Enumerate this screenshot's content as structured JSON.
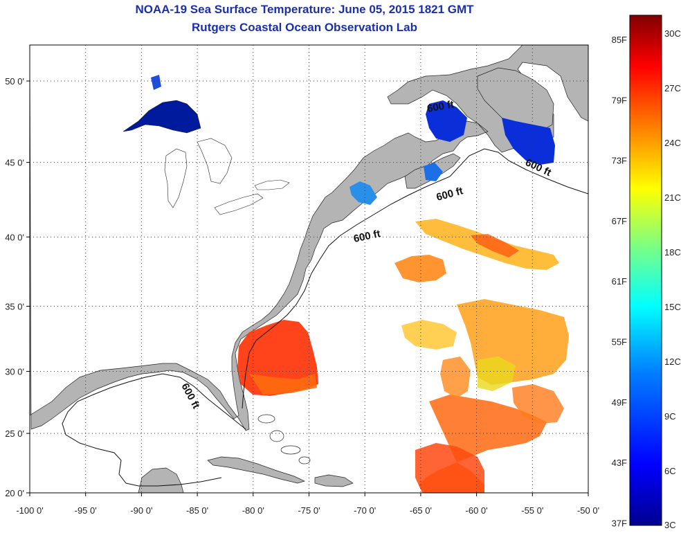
{
  "title": "NOAA-19 Sea Surface Temperature:  June 05, 2015 1821 GMT",
  "subtitle": "Rutgers Coastal Ocean Observation Lab",
  "map": {
    "lon_range": [
      -100,
      -50
    ],
    "lat_range": [
      20,
      52
    ],
    "lon_ticks": [
      "-100 0'",
      "-95 0'",
      "-90 0'",
      "-85 0'",
      "-80 0'",
      "-75 0'",
      "-70 0'",
      "-65 0'",
      "-60 0'",
      "-55 0'",
      "-50 0'"
    ],
    "lat_ticks": [
      "50 0'",
      "45 0'",
      "40 0'",
      "35 0'",
      "30 0'",
      "25 0'",
      "20 0'"
    ],
    "contour_label": "600 ft",
    "land_color": "#b4b4b4",
    "ocean_color": "#ffffff"
  },
  "colorbar": {
    "fahrenheit": [
      "85F",
      "79F",
      "73F",
      "67F",
      "61F",
      "55F",
      "49F",
      "43F",
      "37F"
    ],
    "celsius": [
      "30C",
      "27C",
      "24C",
      "21C",
      "18C",
      "15C",
      "12C",
      "9C",
      "6C",
      "3C"
    ],
    "colors": [
      "#7f0000",
      "#ff0000",
      "#ff7f00",
      "#ffff00",
      "#7fff7f",
      "#00ffff",
      "#007fff",
      "#0000ff",
      "#00008f"
    ]
  }
}
